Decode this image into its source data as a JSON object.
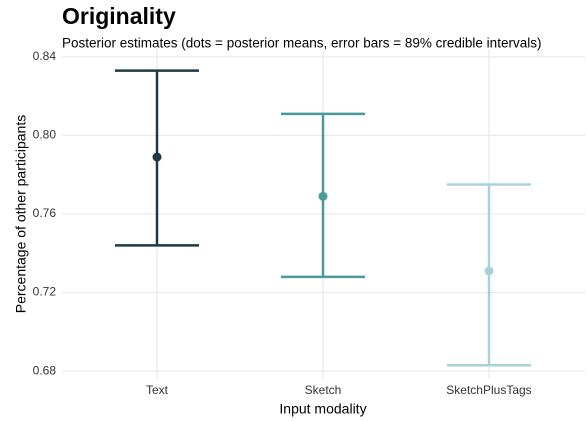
{
  "chart_data": {
    "type": "errorbar",
    "title": "Originality",
    "subtitle": "Posterior estimates (dots = posterior means, error bars = 89% credible intervals)",
    "x_label": "Input modality",
    "y_label": "Percentage of other participants",
    "categories": [
      "Text",
      "Sketch",
      "SketchPlusTags"
    ],
    "values": [
      0.789,
      0.769,
      0.731
    ],
    "lower": [
      0.744,
      0.728,
      0.683
    ],
    "upper": [
      0.833,
      0.811,
      0.775
    ],
    "colors": [
      "#1f3a44",
      "#4a9a9c",
      "#a8d1da"
    ],
    "ylim": [
      0.676,
      0.844
    ],
    "yticks": [
      0.84,
      {
        "value": 0.8,
        "label": "0.80"
      },
      0.76,
      0.72,
      0.68
    ],
    "grid": true
  }
}
